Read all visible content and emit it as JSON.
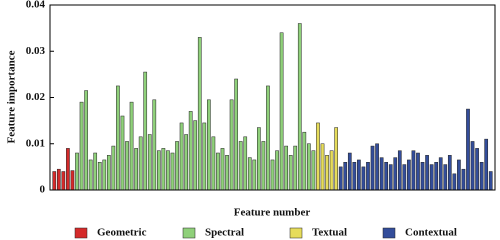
{
  "chart_data": {
    "type": "bar",
    "ylabel": "Feature importance",
    "xlabel": "Feature number",
    "ylim": [
      0,
      0.04
    ],
    "yticks": [
      0,
      0.01,
      0.02,
      0.03,
      0.04
    ],
    "series": [
      {
        "name": "Geometric",
        "color": "#d42a2a",
        "values": [
          0.004,
          0.0045,
          0.004,
          0.009,
          0.0042
        ]
      },
      {
        "name": "Spectral",
        "color": "#8fd07a",
        "values": [
          0.008,
          0.019,
          0.0215,
          0.0065,
          0.008,
          0.006,
          0.0065,
          0.0075,
          0.0095,
          0.0225,
          0.016,
          0.0105,
          0.019,
          0.009,
          0.0115,
          0.0255,
          0.012,
          0.0195,
          0.0085,
          0.009,
          0.0085,
          0.008,
          0.0105,
          0.0145,
          0.012,
          0.017,
          0.015,
          0.033,
          0.0145,
          0.0195,
          0.0115,
          0.008,
          0.009,
          0.0075,
          0.0195,
          0.024,
          0.0105,
          0.0115,
          0.007,
          0.0065,
          0.0135,
          0.0105,
          0.0225,
          0.0065,
          0.0085,
          0.034,
          0.0095,
          0.0075,
          0.0095,
          0.036,
          0.0125,
          0.01,
          0.0085
        ]
      },
      {
        "name": "Textual",
        "color": "#e6dc5a",
        "values": [
          0.0145,
          0.01,
          0.0075,
          0.0085,
          0.0135
        ]
      },
      {
        "name": "Contextual",
        "color": "#334d9a",
        "values": [
          0.005,
          0.006,
          0.008,
          0.006,
          0.0065,
          0.005,
          0.006,
          0.0095,
          0.01,
          0.007,
          0.006,
          0.0055,
          0.007,
          0.0085,
          0.0055,
          0.0065,
          0.0085,
          0.008,
          0.006,
          0.0075,
          0.0055,
          0.006,
          0.007,
          0.0055,
          0.0075,
          0.0035,
          0.0065,
          0.0045,
          0.0175,
          0.0105,
          0.009,
          0.006,
          0.011,
          0.004
        ]
      }
    ]
  }
}
